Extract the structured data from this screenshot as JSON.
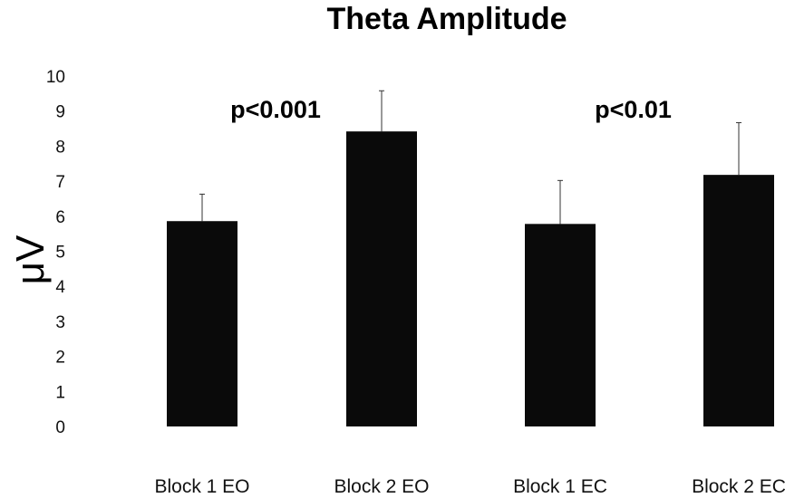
{
  "chart_data": {
    "type": "bar",
    "title": "Theta Amplitude",
    "xlabel": "",
    "ylabel": "μV",
    "ylim": [
      0,
      10
    ],
    "yticks": [
      0,
      1,
      2,
      3,
      4,
      5,
      6,
      7,
      8,
      9,
      10
    ],
    "grid": false,
    "categories": [
      "Block 1 EO",
      "Block 2 EO",
      "Block 1 EC",
      "Block 2 EC"
    ],
    "values": [
      5.86,
      8.42,
      5.78,
      7.18
    ],
    "error_upper": [
      6.63,
      9.58,
      7.02,
      8.67
    ],
    "bar_color": "#0a0a0a",
    "annotations": [
      {
        "text": "p<0.001",
        "between": [
          0,
          1
        ]
      },
      {
        "text": "p<0.01",
        "between": [
          2,
          3
        ]
      }
    ]
  }
}
